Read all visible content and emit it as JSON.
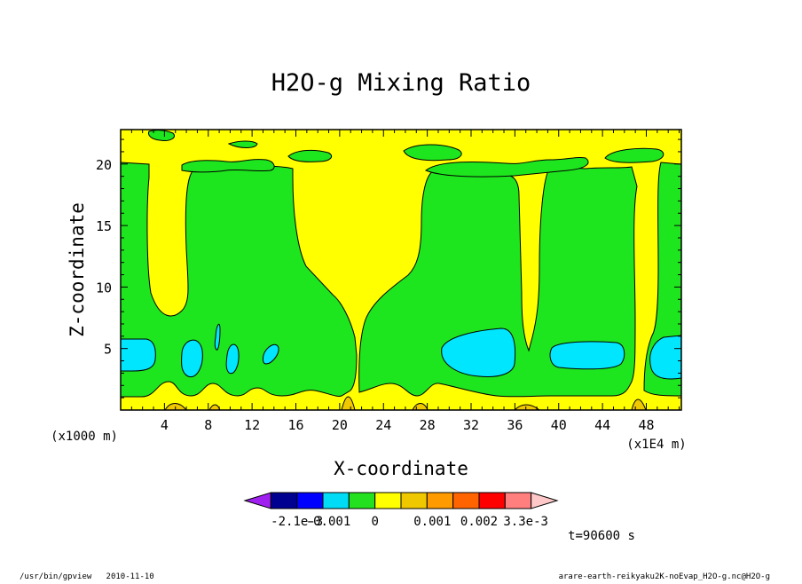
{
  "chart_data": {
    "type": "heatmap",
    "title": "H2O-g Mixing Ratio",
    "xlabel": "X-coordinate",
    "ylabel": "Z-coordinate",
    "x_unit_left": "(x1000 m)",
    "x_unit_right": "(x1E4 m)",
    "x_ticks": [
      "4",
      "8",
      "12",
      "16",
      "20",
      "24",
      "28",
      "32",
      "36",
      "40",
      "44",
      "48"
    ],
    "x_tick_values": [
      4,
      8,
      12,
      16,
      20,
      24,
      28,
      32,
      36,
      40,
      44,
      48
    ],
    "xlim": [
      0,
      51.2
    ],
    "y_ticks": [
      "5",
      "10",
      "15",
      "20"
    ],
    "y_tick_values": [
      5,
      10,
      15,
      20
    ],
    "ylim": [
      0,
      22.8
    ],
    "time_label": "t=90600 s",
    "colorbar": {
      "labels": [
        "-2.1e-3",
        "-0.001",
        "0",
        "0.001",
        "0.002",
        "3.3e-3"
      ],
      "colors": [
        "#a020f0",
        "#000090",
        "#0000ff",
        "#00dcf5",
        "#23e11e",
        "#ffff00",
        "#f0c800",
        "#ff9b00",
        "#ff6400",
        "#ff0000",
        "#ff7f7f",
        "#ffc8c8"
      ]
    },
    "level_colors": {
      "yellow": "#ffff00",
      "green": "#1ee61e",
      "cyan": "#00e6ff",
      "orange": "#f0c800"
    }
  },
  "footer": {
    "left": "/usr/bin/gpview   2010-11-10",
    "right": "arare-earth-reikyaku2K-noEvap_H2O-g.nc@H2O-g"
  }
}
